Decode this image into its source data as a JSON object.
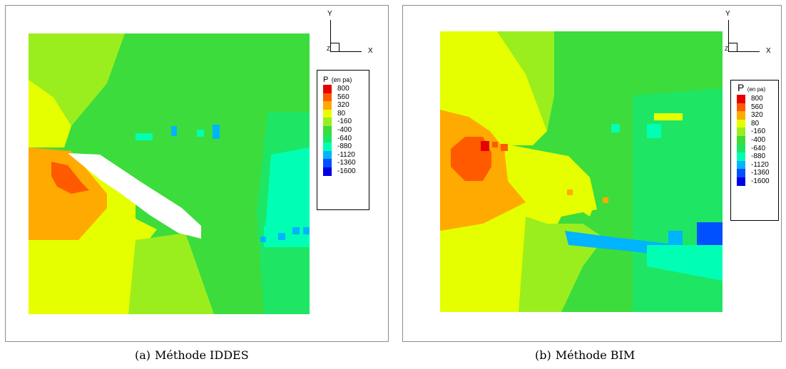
{
  "chart_data": [
    {
      "type": "heatmap",
      "caption_letter": "(a)",
      "caption_text": "Méthode IDDES",
      "legend_title_var": "P",
      "legend_title_unit": "(en pa)",
      "axis_labels": {
        "y": "Y",
        "x": "X",
        "z": "Z"
      },
      "levels": [
        800,
        560,
        320,
        80,
        -160,
        -400,
        -640,
        -880,
        -1120,
        -1360,
        -1600
      ],
      "level_colors": [
        "#e60000",
        "#ff5a00",
        "#ffaa00",
        "#e6ff00",
        "#9bee1e",
        "#3cdc3c",
        "#1ee664",
        "#00ffb4",
        "#00b4ff",
        "#0050ff",
        "#0000e6"
      ]
    },
    {
      "type": "heatmap",
      "caption_letter": "(b)",
      "caption_text": "Méthode BIM",
      "legend_title_var": "P",
      "legend_title_unit": "(en pa)",
      "axis_labels": {
        "y": "Y",
        "x": "X",
        "z": "Z"
      },
      "levels": [
        800,
        560,
        320,
        80,
        -160,
        -400,
        -640,
        -880,
        -1120,
        -1360,
        -1600
      ],
      "level_colors": [
        "#e60000",
        "#ff5a00",
        "#ffaa00",
        "#e6ff00",
        "#9bee1e",
        "#3cdc3c",
        "#1ee664",
        "#00ffb4",
        "#00b4ff",
        "#0050ff",
        "#0000e6"
      ]
    }
  ]
}
